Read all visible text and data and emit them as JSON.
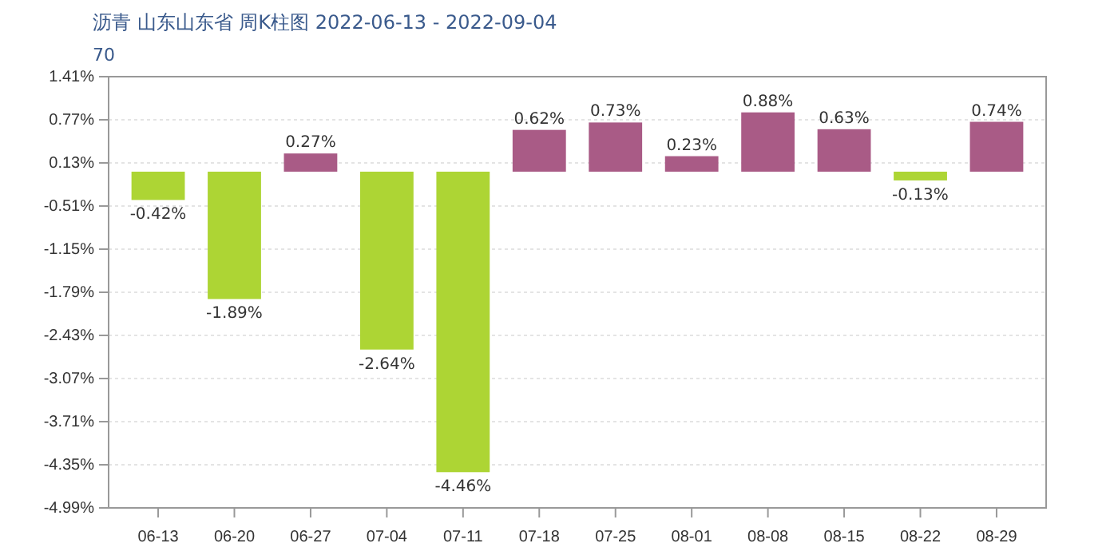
{
  "chart_data": {
    "type": "bar",
    "title": "沥青 山东山东省 周K柱图 2022-06-13 - 2022-09-04",
    "subtitle": "70",
    "categories": [
      "06-13",
      "06-20",
      "06-27",
      "07-04",
      "07-11",
      "07-18",
      "07-25",
      "08-01",
      "08-08",
      "08-15",
      "08-22",
      "08-29"
    ],
    "values": [
      -0.42,
      -1.89,
      0.27,
      -2.64,
      -4.46,
      0.62,
      0.73,
      0.23,
      0.88,
      0.63,
      -0.13,
      0.74
    ],
    "colors": [
      "#add534",
      "#add534",
      "#a95b86",
      "#add534",
      "#add534",
      "#a95b86",
      "#a95b86",
      "#a95b86",
      "#a95b86",
      "#a95b86",
      "#add534",
      "#a95b86"
    ],
    "value_labels": [
      "-0.42%",
      "-1.89%",
      "0.27%",
      "-2.64%",
      "-4.46%",
      "0.62%",
      "0.73%",
      "0.23%",
      "0.88%",
      "0.63%",
      "-0.13%",
      "0.74%"
    ],
    "ylim": [
      -4.99,
      1.41
    ],
    "yticks": [
      {
        "value": 1.41,
        "label": "1.41%"
      },
      {
        "value": 0.77,
        "label": "0.77%"
      },
      {
        "value": 0.13,
        "label": "0.13%"
      },
      {
        "value": -0.51,
        "label": "-0.51%"
      },
      {
        "value": -1.15,
        "label": "-1.15%"
      },
      {
        "value": -1.79,
        "label": "-1.79%"
      },
      {
        "value": -2.43,
        "label": "-2.43%"
      },
      {
        "value": -3.07,
        "label": "-3.07%"
      },
      {
        "value": -3.71,
        "label": "-3.71%"
      },
      {
        "value": -4.35,
        "label": "-4.35%"
      },
      {
        "value": -4.99,
        "label": "-4.99%"
      }
    ],
    "grid": "y"
  }
}
